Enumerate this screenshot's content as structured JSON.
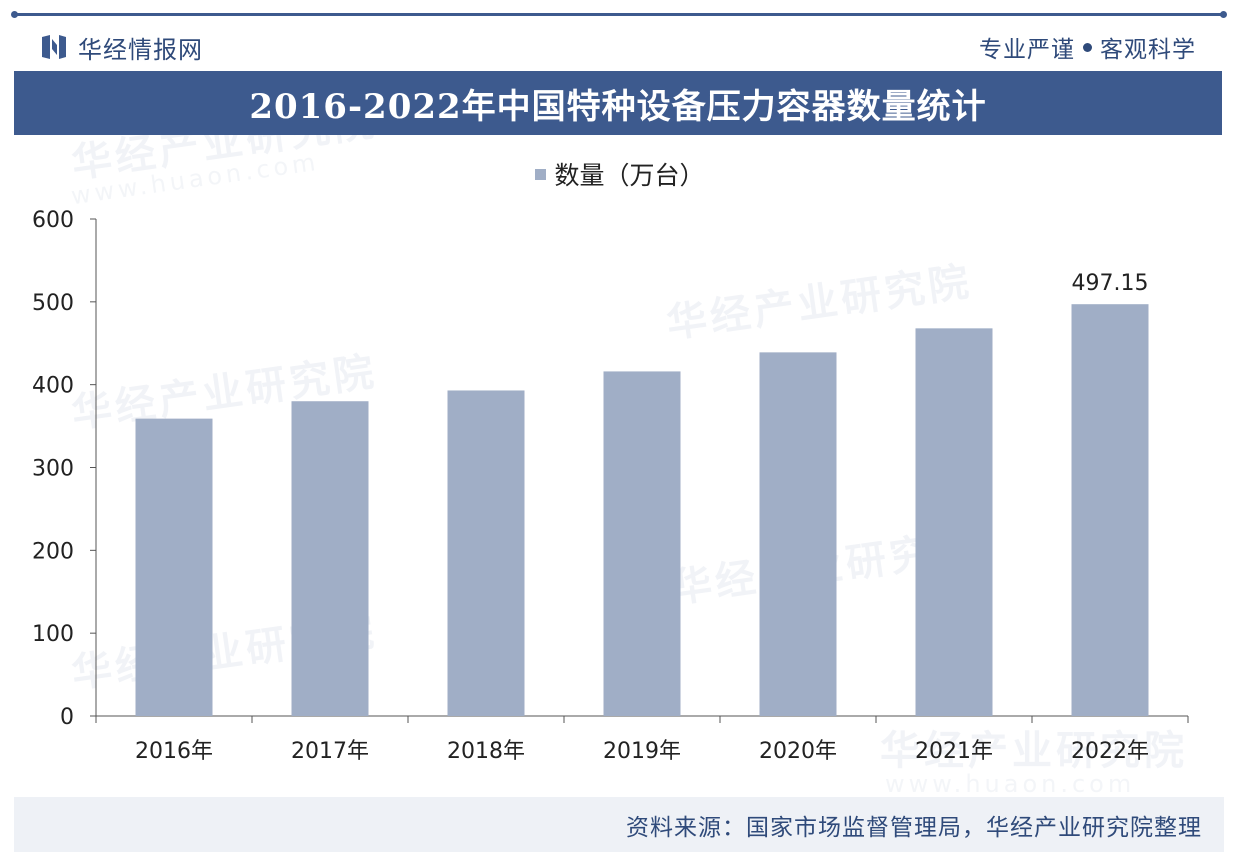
{
  "header": {
    "brand_name": "华经情报网",
    "motto_left": "专业严谨",
    "motto_right": "客观科学"
  },
  "title": "2016-2022年中国特种设备压力容器数量统计",
  "source": "资料来源：国家市场监督管理局，华经产业研究院整理",
  "watermark": {
    "text": "华经产业研究院",
    "url": "www.huaon.com"
  },
  "colors": {
    "brand": "#3d5a8e",
    "bar": "#a0aec6",
    "axis": "#555555"
  },
  "chart_data": {
    "type": "bar",
    "title": "2016-2022年中国特种设备压力容器数量统计",
    "categories": [
      "2016年",
      "2017年",
      "2018年",
      "2019年",
      "2020年",
      "2021年",
      "2022年"
    ],
    "series": [
      {
        "name": "数量（万台）",
        "values": [
          359,
          380,
          393,
          416,
          439,
          468,
          497.15
        ]
      }
    ],
    "data_labels": [
      null,
      null,
      null,
      null,
      null,
      null,
      "497.15"
    ],
    "ylim": [
      0,
      600
    ],
    "yticks": [
      0,
      100,
      200,
      300,
      400,
      500,
      600
    ],
    "legend_position": "top-center",
    "grid": false
  }
}
